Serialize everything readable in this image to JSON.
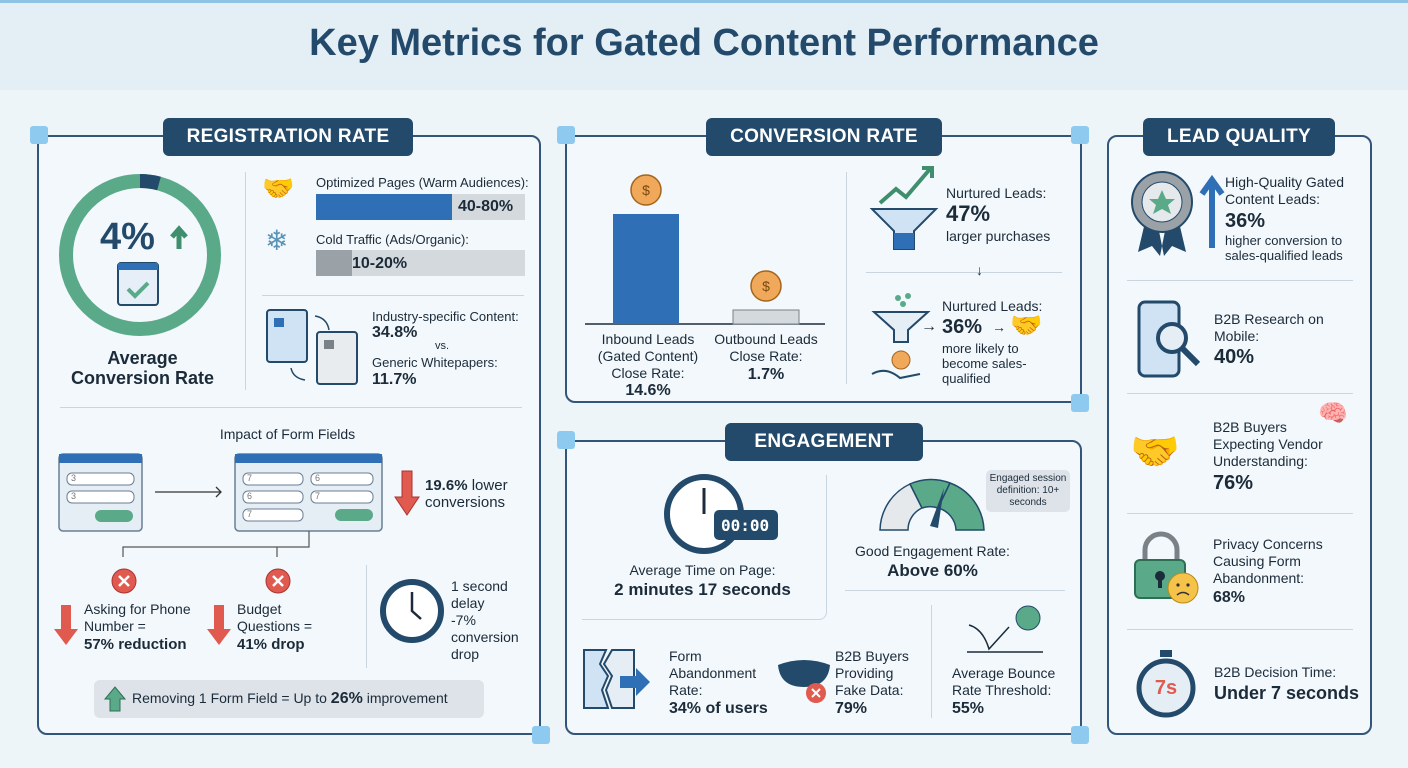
{
  "title": "Key Metrics for Gated Content Performance",
  "colors": {
    "navy": "#234a6b",
    "green": "#5aaa8a",
    "blue": "#2f6fb5",
    "red": "#e05a4f",
    "gray": "#9aa1a7"
  },
  "registration": {
    "header": "REGISTRATION RATE",
    "avg_value": "4%",
    "avg_label": "Average Conversion Rate",
    "warm_label": "Optimized Pages (Warm Audiences):",
    "warm_value": "40-80%",
    "cold_label": "Cold Traffic (Ads/Organic):",
    "cold_value": "10-20%",
    "industry_label": "Industry-specific Content:",
    "industry_value": "34.8%",
    "vs": "vs.",
    "generic_label": "Generic Whitepapers:",
    "generic_value": "11.7%",
    "form_title": "Impact of Form Fields",
    "short_form_fields": [
      "3",
      "3"
    ],
    "long_form_fields": [
      "7",
      "6",
      "6",
      "7",
      "7"
    ],
    "lower_value": "19.6%",
    "lower_label": "lower conversions",
    "phone_text": "Asking for Phone Number =",
    "phone_value": "57% reduction",
    "budget_text": "Budget Questions =",
    "budget_value": "41% drop",
    "delay_text": "1 second delay",
    "delay_value": "-7%",
    "delay_label": "conversion drop",
    "removing_text": "Removing 1 Form Field = Up to",
    "removing_value": "26%",
    "removing_suffix": "improvement"
  },
  "conversion": {
    "header": "CONVERSION RATE",
    "chart_data": {
      "type": "bar",
      "categories": [
        "Inbound Leads (Gated Content) Close Rate",
        "Outbound Leads Close Rate"
      ],
      "values": [
        14.6,
        1.7
      ]
    },
    "inbound_label": "Inbound Leads (Gated Content) Close Rate:",
    "inbound_value": "14.6%",
    "outbound_label": "Outbound Leads Close Rate:",
    "outbound_value": "1.7%",
    "n1_label": "Nurtured Leads:",
    "n1_value": "47%",
    "n1_desc": "larger purchases",
    "n2_label": "Nurtured Leads:",
    "n2_value": "36%",
    "n2_desc": "more likely to become sales-qualified"
  },
  "engagement": {
    "header": "ENGAGEMENT",
    "timer": "00:00",
    "time_label": "Average Time on Page:",
    "time_value": "2 minutes 17 seconds",
    "tooltip": "Engaged session definition: 10+ seconds",
    "rate_label": "Good Engagement Rate:",
    "rate_value": "Above 60%",
    "abandon_label": "Form Abandonment Rate:",
    "abandon_value": "34% of users",
    "fake_label": "B2B Buyers Providing Fake Data:",
    "fake_value": "79%",
    "bounce_label": "Average Bounce Rate Threshold:",
    "bounce_value": "55%"
  },
  "lead_quality": {
    "header": "LEAD QUALITY",
    "items": [
      {
        "label": "High-Quality Gated Content Leads:",
        "value": "36%",
        "desc": "higher conversion to sales-qualified leads"
      },
      {
        "label": "B2B Research on Mobile:",
        "value": "40%"
      },
      {
        "label": "B2B Buyers Expecting Vendor Understanding:",
        "value": "76%"
      },
      {
        "label": "Privacy Concerns Causing Form Abandonment:",
        "value": "68%"
      },
      {
        "label": "B2B Decision Time:",
        "value": "Under 7 seconds",
        "badge": "7s"
      }
    ]
  }
}
